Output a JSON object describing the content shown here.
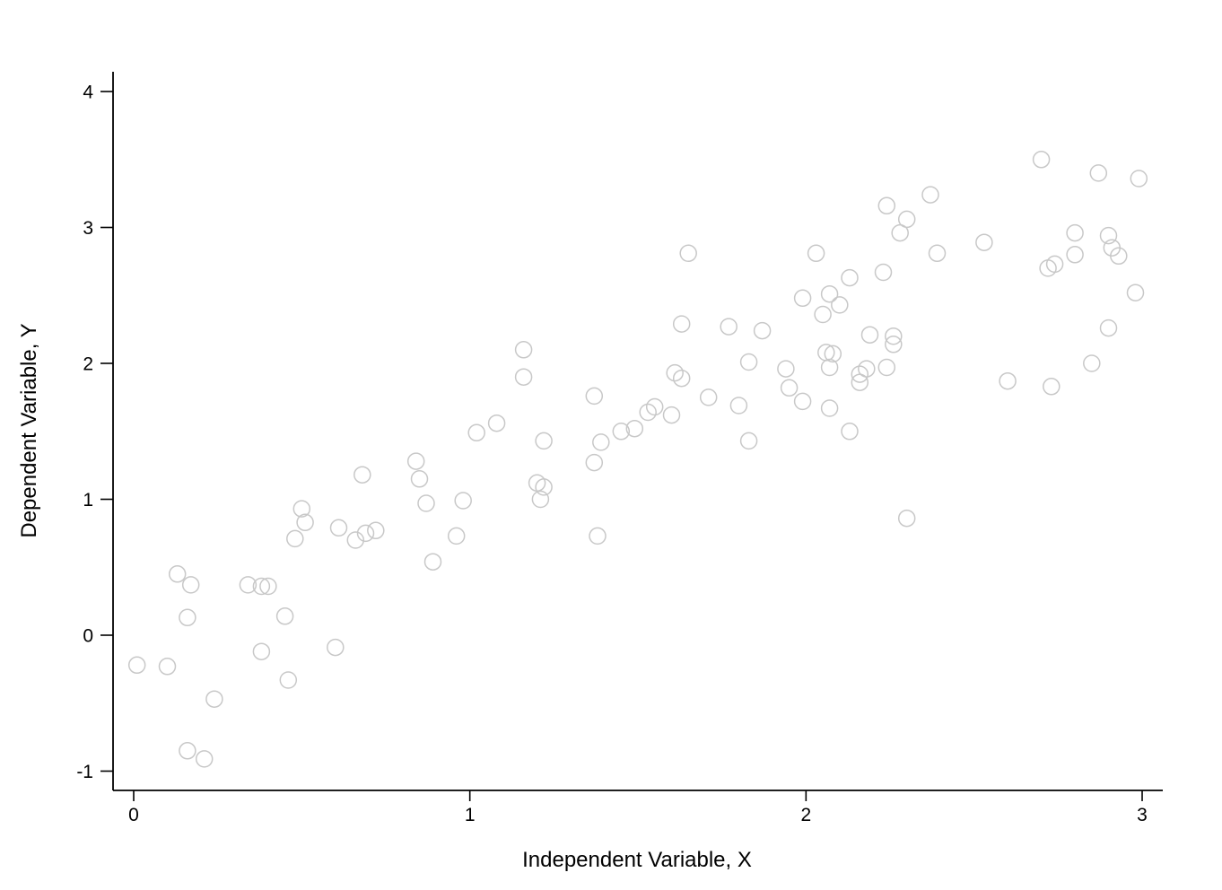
{
  "chart_data": {
    "type": "scatter",
    "title": "",
    "xlabel": "Independent Variable, X",
    "ylabel": "Dependent Variable, Y",
    "xlim": [
      -0.06,
      3.06
    ],
    "ylim": [
      -1.15,
      4.05
    ],
    "x_ticks": [
      0,
      1,
      2,
      3
    ],
    "y_ticks": [
      -1,
      0,
      1,
      2,
      3,
      4
    ],
    "grid": false,
    "legend": "none",
    "marker": {
      "shape": "circle-open",
      "color": "#c8c8c8"
    },
    "axis_color": "#000000",
    "points": [
      [
        0.01,
        -0.22
      ],
      [
        0.1,
        -0.23
      ],
      [
        0.13,
        0.45
      ],
      [
        0.16,
        0.13
      ],
      [
        0.16,
        -0.85
      ],
      [
        0.17,
        0.37
      ],
      [
        0.21,
        -0.91
      ],
      [
        0.24,
        -0.47
      ],
      [
        0.34,
        0.37
      ],
      [
        0.38,
        0.36
      ],
      [
        0.4,
        0.36
      ],
      [
        0.38,
        -0.12
      ],
      [
        0.45,
        0.14
      ],
      [
        0.46,
        -0.33
      ],
      [
        0.48,
        0.71
      ],
      [
        0.5,
        0.93
      ],
      [
        0.51,
        0.83
      ],
      [
        0.6,
        -0.09
      ],
      [
        0.61,
        0.79
      ],
      [
        0.66,
        0.7
      ],
      [
        0.69,
        0.75
      ],
      [
        0.72,
        0.77
      ],
      [
        0.68,
        1.18
      ],
      [
        0.84,
        1.28
      ],
      [
        0.85,
        1.15
      ],
      [
        0.87,
        0.97
      ],
      [
        0.89,
        0.54
      ],
      [
        0.96,
        0.73
      ],
      [
        0.98,
        0.99
      ],
      [
        1.02,
        1.49
      ],
      [
        1.08,
        1.56
      ],
      [
        1.16,
        2.1
      ],
      [
        1.16,
        1.9
      ],
      [
        1.2,
        1.12
      ],
      [
        1.22,
        1.09
      ],
      [
        1.21,
        1.0
      ],
      [
        1.22,
        1.43
      ],
      [
        1.37,
        1.76
      ],
      [
        1.37,
        1.27
      ],
      [
        1.39,
        1.42
      ],
      [
        1.38,
        0.73
      ],
      [
        1.45,
        1.5
      ],
      [
        1.49,
        1.52
      ],
      [
        1.53,
        1.64
      ],
      [
        1.55,
        1.68
      ],
      [
        1.6,
        1.62
      ],
      [
        1.61,
        1.93
      ],
      [
        1.63,
        1.89
      ],
      [
        1.63,
        2.29
      ],
      [
        1.65,
        2.81
      ],
      [
        1.71,
        1.75
      ],
      [
        1.77,
        2.27
      ],
      [
        1.8,
        1.69
      ],
      [
        1.83,
        2.01
      ],
      [
        1.83,
        1.43
      ],
      [
        1.87,
        2.24
      ],
      [
        1.94,
        1.96
      ],
      [
        1.95,
        1.82
      ],
      [
        1.99,
        2.48
      ],
      [
        1.99,
        1.72
      ],
      [
        2.03,
        2.81
      ],
      [
        2.05,
        2.36
      ],
      [
        2.07,
        2.51
      ],
      [
        2.1,
        2.43
      ],
      [
        2.06,
        2.08
      ],
      [
        2.08,
        2.07
      ],
      [
        2.07,
        1.97
      ],
      [
        2.07,
        1.67
      ],
      [
        2.13,
        2.63
      ],
      [
        2.13,
        1.5
      ],
      [
        2.16,
        1.92
      ],
      [
        2.18,
        1.96
      ],
      [
        2.16,
        1.86
      ],
      [
        2.19,
        2.21
      ],
      [
        2.23,
        2.67
      ],
      [
        2.24,
        1.97
      ],
      [
        2.26,
        2.2
      ],
      [
        2.26,
        2.14
      ],
      [
        2.24,
        3.16
      ],
      [
        2.28,
        2.96
      ],
      [
        2.3,
        3.06
      ],
      [
        2.3,
        0.86
      ],
      [
        2.37,
        3.24
      ],
      [
        2.39,
        2.81
      ],
      [
        2.53,
        2.89
      ],
      [
        2.6,
        1.87
      ],
      [
        2.7,
        3.5
      ],
      [
        2.72,
        2.7
      ],
      [
        2.74,
        2.73
      ],
      [
        2.73,
        1.83
      ],
      [
        2.8,
        2.96
      ],
      [
        2.8,
        2.8
      ],
      [
        2.85,
        2.0
      ],
      [
        2.87,
        3.4
      ],
      [
        2.9,
        2.94
      ],
      [
        2.91,
        2.85
      ],
      [
        2.93,
        2.79
      ],
      [
        2.9,
        2.26
      ],
      [
        2.98,
        2.52
      ],
      [
        2.99,
        3.36
      ]
    ]
  }
}
